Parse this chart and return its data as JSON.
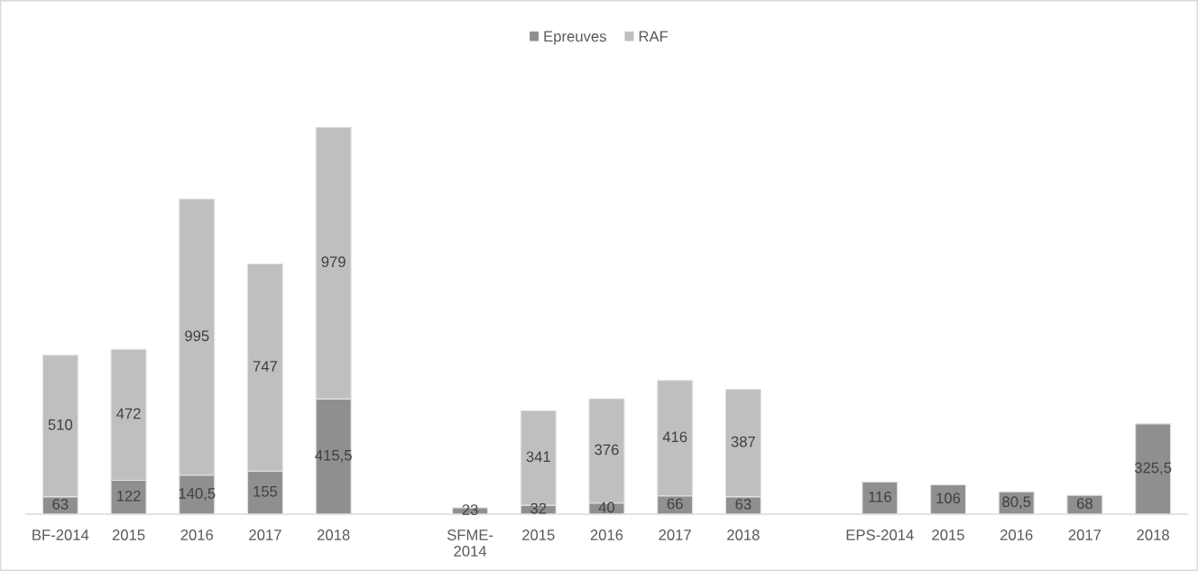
{
  "chart_data": {
    "type": "bar",
    "stacked": true,
    "legend": "top",
    "tick_labels": "x",
    "categories": [
      "BF-2014",
      "2015",
      "2016",
      "2017",
      "2018",
      null,
      "SFME-\n2014",
      "2015",
      "2016",
      "2017",
      "2018",
      null,
      "EPS-2014",
      "2015",
      "2016",
      "2017",
      "2018"
    ],
    "series": [
      {
        "name": "Epreuves",
        "color": "#8f8f8f",
        "values": [
          63,
          122,
          140.5,
          155,
          415.5,
          null,
          23,
          32,
          40,
          66,
          63,
          null,
          116,
          106,
          80.5,
          68,
          325.5
        ],
        "value_labels": [
          "63",
          "122",
          "140,5",
          "155",
          "415,5",
          null,
          "23",
          "32",
          "40",
          "66",
          "63",
          null,
          "116",
          "106",
          "80,5",
          "68",
          "325,5"
        ]
      },
      {
        "name": "RAF",
        "color": "#bfbfbf",
        "values": [
          510,
          472,
          995,
          747,
          979,
          null,
          null,
          341,
          376,
          416,
          387,
          null,
          null,
          null,
          null,
          null,
          null
        ],
        "value_labels": [
          "510",
          "472",
          "995",
          "747",
          "979",
          null,
          null,
          "341",
          "376",
          "416",
          "387",
          null,
          null,
          null,
          null,
          null,
          null
        ]
      }
    ]
  }
}
